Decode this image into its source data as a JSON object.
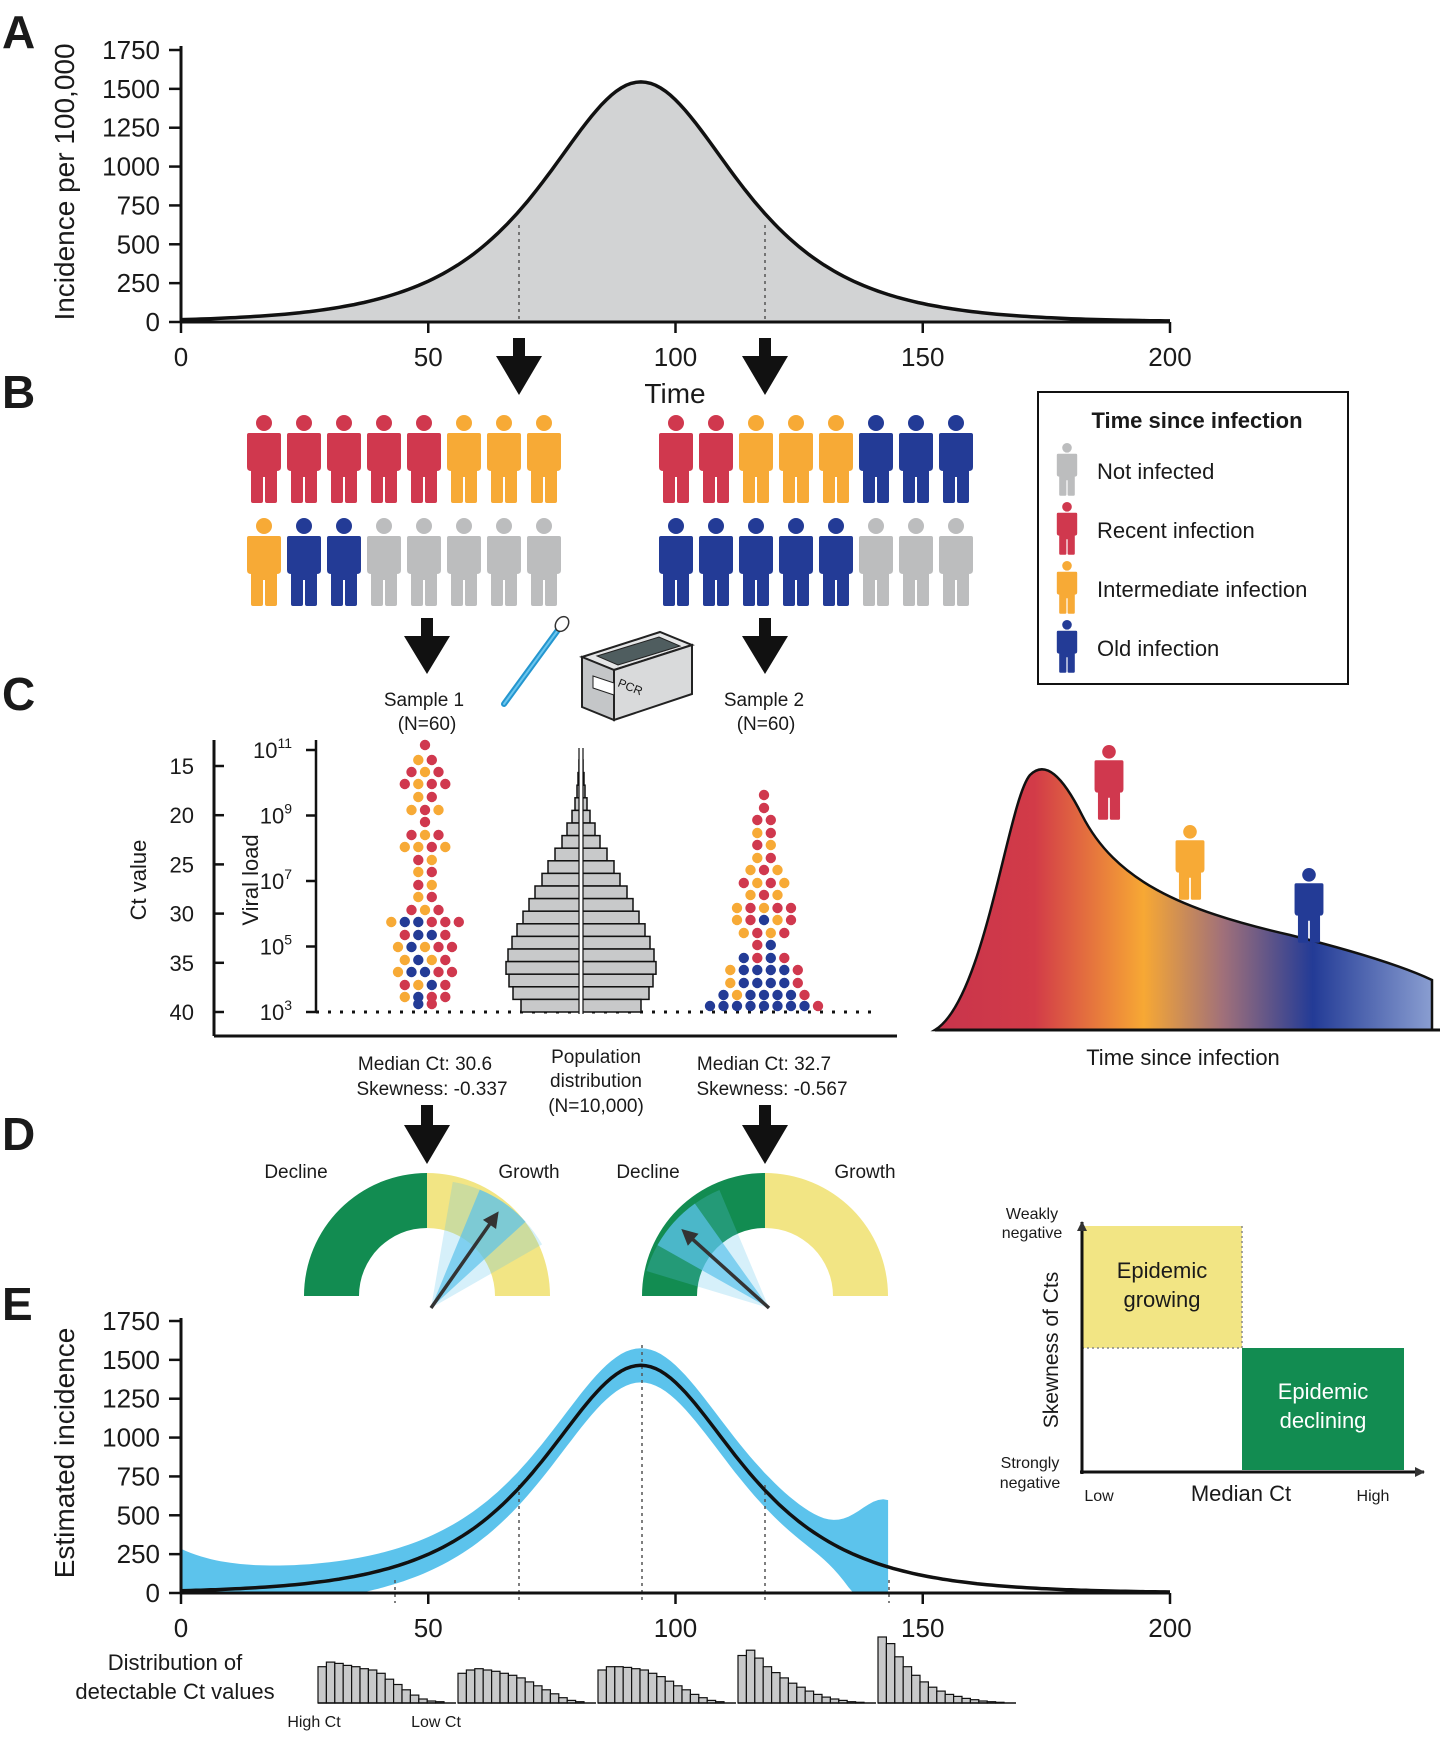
{
  "panels": {
    "a": "A",
    "b": "B",
    "c": "C",
    "d": "D",
    "e": "E"
  },
  "colors": {
    "not_infected": "#bcbdbe",
    "recent": "#d0384e",
    "intermediate": "#f7aa36",
    "old": "#233b96",
    "green": "#128c51",
    "yellow": "#f2e584",
    "blue": "#5cc3ec",
    "grey_fill": "#d2d3d4"
  },
  "panel_a": {
    "ylabel": "Incidence per 100,000",
    "xlabel": "Time",
    "yticks": [
      "0",
      "250",
      "500",
      "750",
      "1000",
      "1250",
      "1500",
      "1750"
    ],
    "xticks": [
      "0",
      "50",
      "100",
      "150",
      "200"
    ]
  },
  "panel_b": {
    "legend_title": "Time since infection",
    "legend": [
      "Not infected",
      "Recent infection",
      "Intermediate infection",
      "Old infection"
    ],
    "group1_colors": [
      "recent",
      "recent",
      "recent",
      "recent",
      "recent",
      "intermediate",
      "intermediate",
      "intermediate",
      "intermediate",
      "old",
      "old",
      "not_infected",
      "not_infected",
      "not_infected",
      "not_infected",
      "not_infected"
    ],
    "group2_colors": [
      "recent",
      "recent",
      "intermediate",
      "intermediate",
      "intermediate",
      "old",
      "old",
      "old",
      "old",
      "old",
      "old",
      "old",
      "old",
      "not_infected",
      "not_infected",
      "not_infected"
    ],
    "pcr_label": "PCR"
  },
  "panel_c": {
    "sample1": "Sample 1",
    "sample1_n": "(N=60)",
    "sample2": "Sample 2",
    "sample2_n": "(N=60)",
    "ct_label": "Ct value",
    "vl_label": "Viral load",
    "ct_ticks": [
      "15",
      "20",
      "25",
      "30",
      "35",
      "40"
    ],
    "vl_base": "10",
    "vl_exps": [
      "11",
      "9",
      "7",
      "5",
      "3"
    ],
    "pop_label": [
      "Population",
      "distribution",
      "(N=10,000)"
    ],
    "median1": "Median Ct: 30.6",
    "skew1": "Skewness: -0.337",
    "median2": "Median Ct: 32.7",
    "skew2": "Skewness: -0.567",
    "tsi_label": "Time since infection"
  },
  "panel_d": {
    "decline": "Decline",
    "growth": "Growth",
    "y_top": [
      "Weakly",
      "negative"
    ],
    "y_bottom": [
      "Strongly",
      "negative"
    ],
    "ylabel": "Skewness of Cts",
    "x_low": "Low",
    "x_high": "High",
    "xlabel": "Median Ct",
    "growing": [
      "Epidemic",
      "growing"
    ],
    "declining": [
      "Epidemic",
      "declining"
    ]
  },
  "panel_e": {
    "ylabel": "Estimated incidence",
    "yticks": [
      "0",
      "250",
      "500",
      "750",
      "1000",
      "1250",
      "1500",
      "1750"
    ],
    "xticks": [
      "0",
      "50",
      "100",
      "150",
      "200"
    ],
    "dist_label": [
      "Distribution of",
      "detectable Ct values"
    ],
    "high_ct": "High Ct",
    "low_ct": "Low Ct"
  }
}
